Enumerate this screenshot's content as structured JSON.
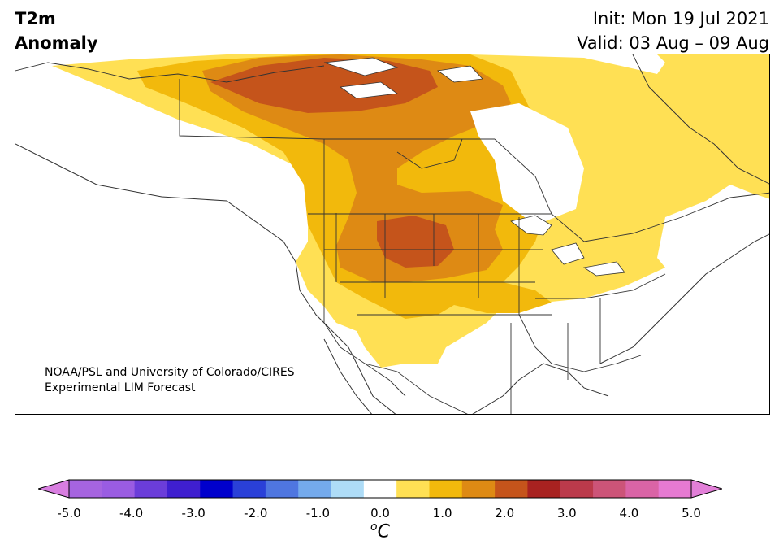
{
  "title": {
    "line1": "T2m",
    "line2": "Anomaly"
  },
  "init": "Init: Mon 19 Jul 2021",
  "valid": "Valid: 03 Aug – 09 Aug",
  "credit": {
    "line1": "NOAA/PSL and University of Colorado/CIRES",
    "line2": "Experimental LIM Forecast"
  },
  "colorbar": {
    "unit_superscript": "o",
    "unit_letter": "C",
    "tick_labels": [
      "-5.0",
      "-4.0",
      "-3.0",
      "-2.0",
      "-1.0",
      "0.0",
      "1.0",
      "2.0",
      "3.0",
      "4.0",
      "5.0"
    ],
    "bins": [
      {
        "range": "<-5.0",
        "color": "#d87ee0"
      },
      {
        "range": "-5.0 to -4.5",
        "color": "#a664e0"
      },
      {
        "range": "-4.5 to -4.0",
        "color": "#9a5ce2"
      },
      {
        "range": "-4.0 to -3.5",
        "color": "#6b3dd9"
      },
      {
        "range": "-3.5 to -3.0",
        "color": "#3f1fd0"
      },
      {
        "range": "-3.0 to -2.5",
        "color": "#0000cc"
      },
      {
        "range": "-2.5 to -2.0",
        "color": "#2a40d8"
      },
      {
        "range": "-2.0 to -1.5",
        "color": "#4f76e0"
      },
      {
        "range": "-1.5 to -1.0",
        "color": "#74aaec"
      },
      {
        "range": "-1.0 to -0.5",
        "color": "#aedcf7"
      },
      {
        "range": "-0.5 to 0.5",
        "color": "#ffffff"
      },
      {
        "range": "0.5 to 1.0",
        "color": "#ffe054"
      },
      {
        "range": "1.0 to 1.5",
        "color": "#f2b90c"
      },
      {
        "range": "1.5 to 2.0",
        "color": "#de8a14"
      },
      {
        "range": "2.0 to 2.5",
        "color": "#c5541b"
      },
      {
        "range": "2.5 to 3.0",
        "color": "#a82220"
      },
      {
        "range": "3.0 to 3.5",
        "color": "#bb3a4b"
      },
      {
        "range": "3.5 to 4.0",
        "color": "#cc5478"
      },
      {
        "range": "4.0 to 4.5",
        "color": "#da64a6"
      },
      {
        "range": "4.5 to 5.0",
        "color": "#e67ad2"
      },
      {
        "range": ">5.0",
        "color": "#e27fd8"
      }
    ]
  },
  "map_fill_colors": {
    "anomaly_0_5_to_1": "#ffe054",
    "anomaly_1_to_1_5": "#f2b90c",
    "anomaly_1_5_to_2": "#de8a14",
    "anomaly_2_to_2_5": "#c5541b",
    "water": "#ffffff",
    "border_lines": "#333333"
  }
}
